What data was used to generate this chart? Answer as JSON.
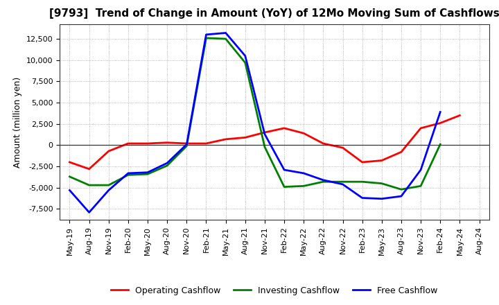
{
  "title": "[9793]  Trend of Change in Amount (YoY) of 12Mo Moving Sum of Cashflows",
  "ylabel": "Amount (million yen)",
  "xlabel_labels": [
    "May-19",
    "Aug-19",
    "Nov-19",
    "Feb-20",
    "May-20",
    "Aug-20",
    "Nov-20",
    "Feb-21",
    "May-21",
    "Aug-21",
    "Nov-21",
    "Feb-22",
    "May-22",
    "Aug-22",
    "Nov-22",
    "Feb-23",
    "May-23",
    "Aug-23",
    "Nov-23",
    "Feb-24",
    "May-24",
    "Aug-24"
  ],
  "operating": [
    -2000,
    -2800,
    -700,
    200,
    200,
    300,
    200,
    200,
    700,
    900,
    1500,
    2000,
    1400,
    200,
    -300,
    -2000,
    -1800,
    -800,
    2000,
    2600,
    3500,
    null
  ],
  "investing": [
    -3700,
    -4700,
    -4700,
    -3500,
    -3400,
    -2400,
    -100,
    12600,
    12500,
    9700,
    -200,
    -4900,
    -4800,
    -4300,
    -4300,
    -4300,
    -4500,
    -5200,
    -4800,
    100,
    null,
    null
  ],
  "free": [
    -5300,
    -7900,
    -5300,
    -3300,
    -3200,
    -2100,
    100,
    13000,
    13200,
    10500,
    1300,
    -2900,
    -3300,
    -4100,
    -4600,
    -6200,
    -6300,
    -6000,
    -2900,
    3900,
    null,
    null
  ],
  "operating_color": "#ff0000",
  "investing_color": "#008000",
  "free_color": "#0000ff",
  "ylim": [
    -8750,
    14200
  ],
  "yticks": [
    -7500,
    -5000,
    -2500,
    0,
    2500,
    5000,
    7500,
    10000,
    12500
  ],
  "bg_color": "#ffffff",
  "grid_color": "#999999",
  "linewidth": 2.0,
  "title_fontsize": 11,
  "tick_fontsize": 8,
  "ylabel_fontsize": 9,
  "legend_fontsize": 9
}
